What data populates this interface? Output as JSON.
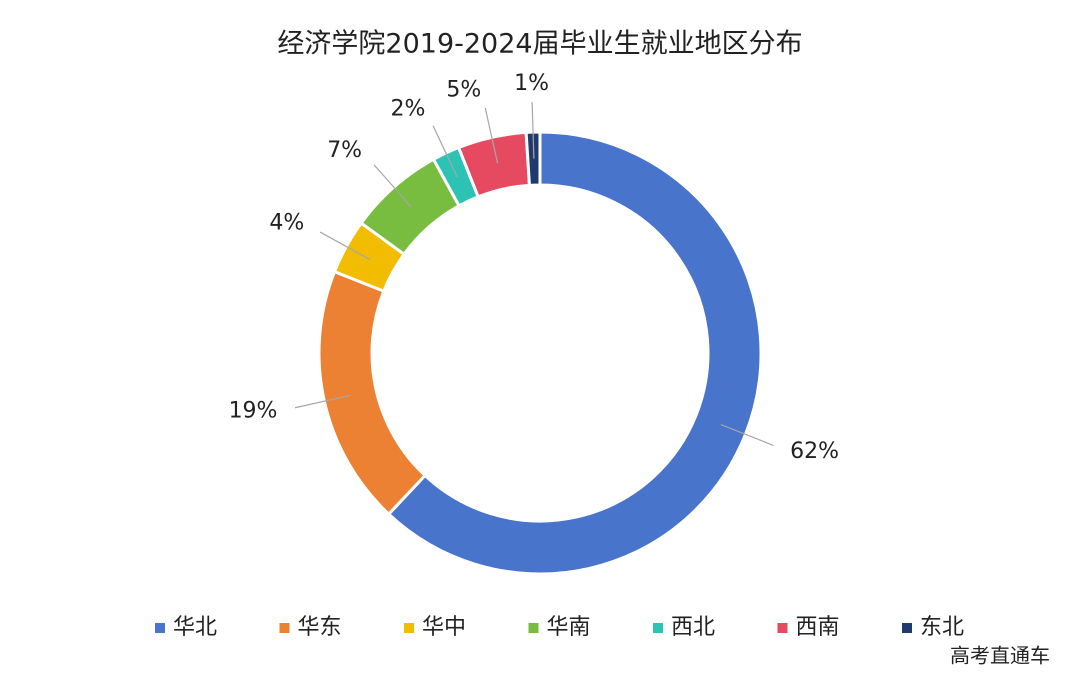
{
  "chart_data": {
    "type": "donut",
    "title": "经济学院2019-2024届毕业生就业地区分布",
    "categories": [
      "华北",
      "华东",
      "华中",
      "华南",
      "西北",
      "西南",
      "东北"
    ],
    "values": [
      62,
      19,
      4,
      7,
      2,
      5,
      1
    ],
    "value_labels": [
      "62%",
      "19%",
      "4%",
      "7%",
      "2%",
      "5%",
      "1%"
    ],
    "colors": [
      "#4874cc",
      "#ed8133",
      "#f2bd00",
      "#78bd40",
      "#2dc3b4",
      "#e64a60",
      "#1f3a6e"
    ],
    "legend": "bottom",
    "watermark": "高考直通车"
  }
}
